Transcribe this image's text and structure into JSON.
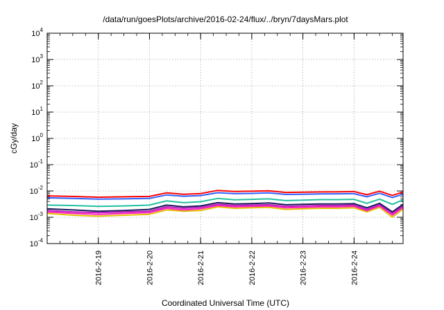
{
  "chart_data": {
    "type": "line",
    "title": "/data/run/goesPlots/archive/2016-02-24/flux/../bryn/7daysMars.plot",
    "xlabel": "Coordinated Universal Time (UTC)",
    "ylabel": "cGy/day",
    "yscale": "log",
    "ylim": [
      0.0001,
      10000
    ],
    "y_ticks": [
      {
        "mantissa": "10",
        "exp": "-4",
        "value": 0.0001
      },
      {
        "mantissa": "10",
        "exp": "-3",
        "value": 0.001
      },
      {
        "mantissa": "10",
        "exp": "-2",
        "value": 0.01
      },
      {
        "mantissa": "10",
        "exp": "-1",
        "value": 0.1
      },
      {
        "mantissa": "10",
        "exp": "0",
        "value": 1
      },
      {
        "mantissa": "10",
        "exp": "1",
        "value": 10
      },
      {
        "mantissa": "10",
        "exp": "2",
        "value": 100
      },
      {
        "mantissa": "10",
        "exp": "3",
        "value": 1000
      },
      {
        "mantissa": "10",
        "exp": "4",
        "value": 10000
      }
    ],
    "xlim": [
      "2016-02-18",
      "2016-02-24T23:00"
    ],
    "x_ticks": [
      "2016-2-19",
      "2016-2-20",
      "2016-2-21",
      "2016-2-22",
      "2016-2-23",
      "2016-2-24"
    ],
    "x_tick_dates": [
      "2016-02-19",
      "2016-02-20",
      "2016-02-21",
      "2016-02-22",
      "2016-02-23",
      "2016-02-24"
    ],
    "grid": true,
    "legend": "none",
    "x": [
      "2016-02-18",
      "2016-02-18T12:00",
      "2016-02-19",
      "2016-02-19T12:00",
      "2016-02-20",
      "2016-02-20T08:00",
      "2016-02-20T16:00",
      "2016-02-21",
      "2016-02-21T08:00",
      "2016-02-21T16:00",
      "2016-02-22",
      "2016-02-22T08:00",
      "2016-02-22T16:00",
      "2016-02-23",
      "2016-02-23T08:00",
      "2016-02-23T16:00",
      "2016-02-24",
      "2016-02-24T06:00",
      "2016-02-24T12:00",
      "2016-02-24T18:00",
      "2016-02-24T23:00"
    ],
    "series": [
      {
        "color": "#ff0000",
        "values": [
          0.0065,
          0.0062,
          0.0058,
          0.006,
          0.0062,
          0.0085,
          0.0075,
          0.008,
          0.0105,
          0.0095,
          0.0098,
          0.0102,
          0.0088,
          0.009,
          0.0092,
          0.0093,
          0.0095,
          0.0072,
          0.0098,
          0.0068,
          0.0092
        ]
      },
      {
        "color": "#3060ff",
        "values": [
          0.0055,
          0.0052,
          0.0049,
          0.005,
          0.0052,
          0.0071,
          0.0063,
          0.0067,
          0.0086,
          0.0079,
          0.0081,
          0.0085,
          0.0074,
          0.0075,
          0.0077,
          0.0078,
          0.0079,
          0.006,
          0.0082,
          0.0056,
          0.0076
        ]
      },
      {
        "color": "#20c0a0",
        "values": [
          0.0029,
          0.0028,
          0.0026,
          0.0027,
          0.0029,
          0.0042,
          0.0036,
          0.0039,
          0.0052,
          0.0046,
          0.0048,
          0.005,
          0.0043,
          0.0045,
          0.0047,
          0.0047,
          0.0048,
          0.0034,
          0.0049,
          0.0031,
          0.0046
        ]
      },
      {
        "color": "#1a1a5a",
        "values": [
          0.0021,
          0.0019,
          0.0017,
          0.0018,
          0.002,
          0.0029,
          0.0025,
          0.0027,
          0.0036,
          0.0032,
          0.0033,
          0.0035,
          0.003,
          0.0031,
          0.0032,
          0.0032,
          0.0033,
          0.0023,
          0.0034,
          0.0016,
          0.0031
        ]
      },
      {
        "color": "#c020c0",
        "values": [
          0.0018,
          0.0016,
          0.0015,
          0.0016,
          0.0017,
          0.0025,
          0.0022,
          0.0024,
          0.0031,
          0.0028,
          0.0029,
          0.003,
          0.0026,
          0.0027,
          0.0028,
          0.0028,
          0.0029,
          0.002,
          0.003,
          0.0014,
          0.0027
        ]
      },
      {
        "color": "#ff20c0",
        "values": [
          0.0016,
          0.0014,
          0.0013,
          0.0014,
          0.0015,
          0.0022,
          0.0019,
          0.0021,
          0.0028,
          0.0025,
          0.0026,
          0.0027,
          0.0023,
          0.0024,
          0.0025,
          0.0025,
          0.0026,
          0.0018,
          0.0027,
          0.0012,
          0.0024
        ]
      },
      {
        "color": "#e0c000",
        "values": [
          0.0014,
          0.0012,
          0.0011,
          0.0012,
          0.0013,
          0.0019,
          0.0017,
          0.0018,
          0.0025,
          0.0022,
          0.0023,
          0.0024,
          0.002,
          0.0021,
          0.0022,
          0.0022,
          0.0023,
          0.0016,
          0.0024,
          0.001,
          0.0021
        ]
      }
    ]
  }
}
